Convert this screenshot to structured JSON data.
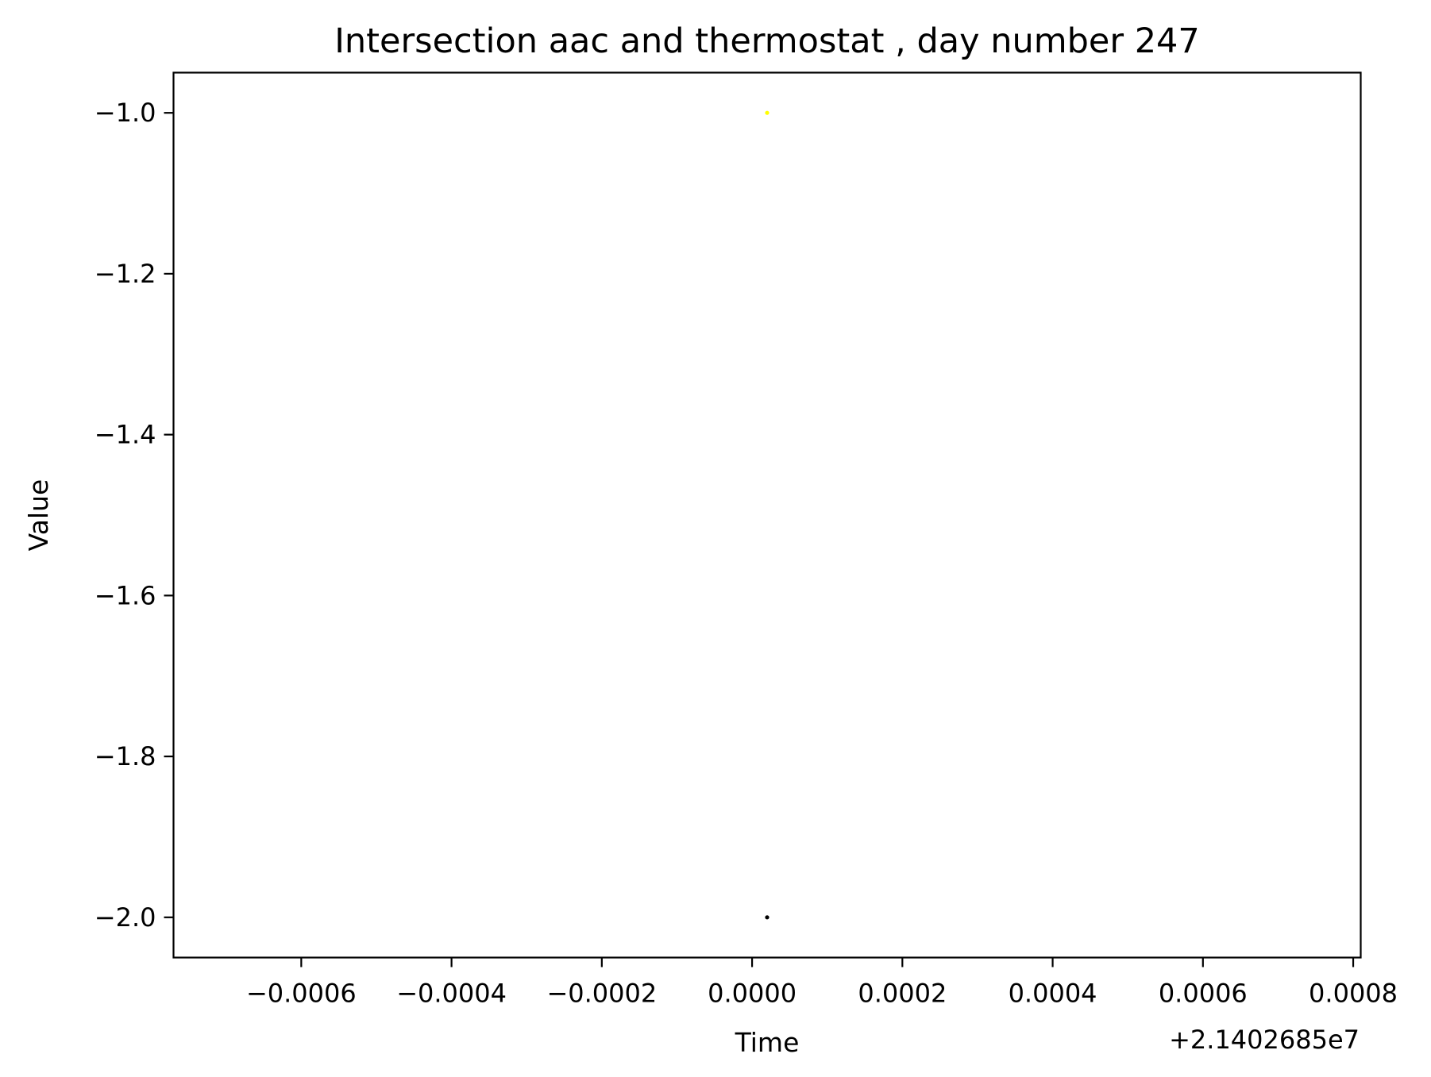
{
  "chart_data": {
    "type": "scatter",
    "title": "Intersection aac and thermostat , day number 247",
    "xlabel": "Time",
    "ylabel": "Value",
    "x_offset_label": "+2.1402685e7",
    "xlim": [
      -0.00077,
      0.00081
    ],
    "ylim": [
      -2.05,
      -0.95
    ],
    "x_ticks": [
      {
        "value": -0.0006,
        "label": "−0.0006"
      },
      {
        "value": -0.0004,
        "label": "−0.0004"
      },
      {
        "value": -0.0002,
        "label": "−0.0002"
      },
      {
        "value": 0.0,
        "label": "0.0000"
      },
      {
        "value": 0.0002,
        "label": "0.0002"
      },
      {
        "value": 0.0004,
        "label": "0.0004"
      },
      {
        "value": 0.0006,
        "label": "0.0006"
      },
      {
        "value": 0.0008,
        "label": "0.0008"
      }
    ],
    "y_ticks": [
      {
        "value": -1.0,
        "label": "−1.0"
      },
      {
        "value": -1.2,
        "label": "−1.2"
      },
      {
        "value": -1.4,
        "label": "−1.4"
      },
      {
        "value": -1.6,
        "label": "−1.6"
      },
      {
        "value": -1.8,
        "label": "−1.8"
      },
      {
        "value": -2.0,
        "label": "−2.0"
      }
    ],
    "grid": false,
    "series": [
      {
        "color": "#ffff00",
        "points": [
          {
            "x": 2e-05,
            "y": -1.0
          }
        ]
      },
      {
        "color": "#000000",
        "points": [
          {
            "x": 2e-05,
            "y": -2.0
          }
        ]
      }
    ]
  }
}
